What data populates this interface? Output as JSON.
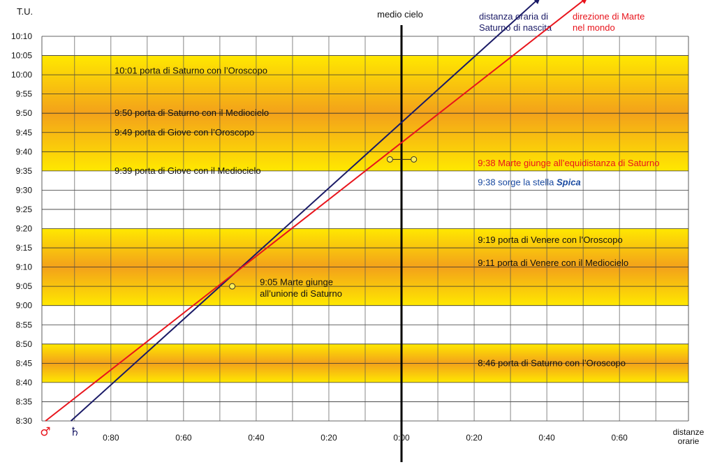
{
  "chart_data": {
    "type": "line",
    "title": "",
    "ylabel": "T.U.",
    "xlabel": "distanze orarie",
    "xlabel_lines": [
      "distanze",
      "orarie"
    ],
    "y_ticks": [
      "8:30",
      "8:35",
      "8:40",
      "8:45",
      "8:50",
      "8:55",
      "9:00",
      "9:05",
      "9:10",
      "9:15",
      "9:20",
      "9:25",
      "9:30",
      "9:35",
      "9:40",
      "9:45",
      "9:50",
      "9:55",
      "10:00",
      "10:05",
      "10:10"
    ],
    "y_tick_minutes": [
      510,
      515,
      520,
      525,
      530,
      535,
      540,
      545,
      550,
      555,
      560,
      565,
      570,
      575,
      580,
      585,
      590,
      595,
      600,
      605,
      610
    ],
    "ylim_minutes": [
      510,
      610
    ],
    "x_ticks": [
      {
        "label": "0:80",
        "value": -80
      },
      {
        "label": "0:60",
        "value": -60
      },
      {
        "label": "0:40",
        "value": -40
      },
      {
        "label": "0:20",
        "value": -20
      },
      {
        "label": "0:00",
        "value": 0
      },
      {
        "label": "0:20",
        "value": 20
      },
      {
        "label": "0:40",
        "value": 40
      },
      {
        "label": "0:60",
        "value": 60
      }
    ],
    "xlim": [
      -99,
      79
    ],
    "midheaven_label": "medio cielo",
    "midheaven_x": 0,
    "bands_minutes": [
      [
        575,
        605
      ],
      [
        540,
        560
      ],
      [
        520,
        530
      ]
    ],
    "series": [
      {
        "name": "distanza oraria di Saturno di nascita",
        "label_lines": [
          "distanza oraria di",
          "Saturno di nascita"
        ],
        "color": "#1a1a66",
        "symbol": "♄",
        "start": {
          "x": -91,
          "y": 510
        },
        "end": {
          "x": 38,
          "y": 620
        }
      },
      {
        "name": "direzione di Marte nel mondo",
        "label_lines": [
          "direzione di Marte",
          "nel mondo"
        ],
        "color": "#e8141c",
        "symbol": "♂",
        "start": {
          "x": -98,
          "y": 510
        },
        "end": {
          "x": 51,
          "y": 620
        }
      }
    ],
    "markers": [
      {
        "x": -46.6,
        "y": 545
      },
      {
        "x": -3.2,
        "y": 578
      },
      {
        "x": 3.4,
        "y": 578
      }
    ],
    "marker_connector_y": 578,
    "annotations": [
      {
        "text": "10:01 porta di Saturno con l’Oroscopo",
        "x": -79,
        "y": 601,
        "color": "#111"
      },
      {
        "text": "9:50 porta di Saturno con il Mediocielo",
        "x": -79,
        "y": 590,
        "color": "#111"
      },
      {
        "text": "9:49 porta di Giove con l’Oroscopo",
        "x": -79,
        "y": 585,
        "color": "#111"
      },
      {
        "text": "9:39 porta di Giove con il Mediocielo",
        "x": -79,
        "y": 575,
        "color": "#111"
      },
      {
        "text": "9:38 Marte giunge all’equidistanza di Saturno",
        "x": 21,
        "y": 577,
        "color": "#e8141c"
      },
      {
        "text": "9:38 sorge la stella ",
        "x": 21,
        "y": 572,
        "color": "#1a4aa0",
        "extra": "Spica"
      },
      {
        "text": "9:19 porta di Venere con l’Oroscopo",
        "x": 21,
        "y": 557,
        "color": "#111"
      },
      {
        "text": "9:11 porta di Venere con il Mediocielo",
        "x": 21,
        "y": 551,
        "color": "#111"
      },
      {
        "text": "9:05 Marte giunge",
        "x": -39,
        "y": 546,
        "color": "#111"
      },
      {
        "text": "all’unione di Saturno",
        "x": -39,
        "y": 543,
        "color": "#111"
      },
      {
        "text": "8:46 porta di Saturno con l’Oroscopo",
        "x": 21,
        "y": 525,
        "color": "#111"
      }
    ]
  }
}
